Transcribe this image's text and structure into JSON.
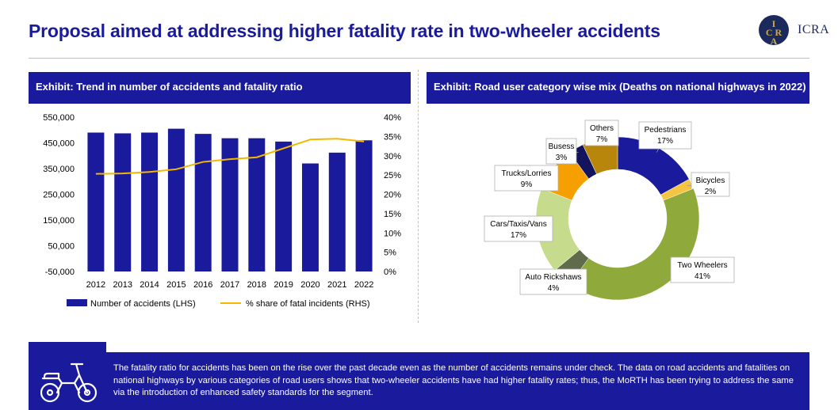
{
  "header": {
    "title": "Proposal aimed at addressing higher fatality rate in two-wheeler accidents",
    "logo_text": "ICRA",
    "logo_letters": "ICRA"
  },
  "left_panel": {
    "heading": "Exhibit: Trend in number of accidents and fatality ratio"
  },
  "right_panel": {
    "heading": "Exhibit: Road user category wise mix (Deaths on national highways in 2022)"
  },
  "footer": {
    "text": "The fatality ratio for accidents has been on the rise over the past decade even as the number of accidents remains under check. The data on road accidents and fatalities on national highways by various categories of road users shows that two-wheeler accidents have had higher fatality rates; thus, the MoRTH has been trying to address the same via the introduction of enhanced safety standards for the segment.",
    "icon": "motorcycle-icon"
  },
  "colors": {
    "brand_blue": "#1a1a9c",
    "line_orange": "#f5b800"
  },
  "chart_data": [
    {
      "type": "bar",
      "categories": [
        "2012",
        "2013",
        "2014",
        "2015",
        "2016",
        "2017",
        "2018",
        "2019",
        "2020",
        "2021",
        "2022"
      ],
      "series": [
        {
          "name": "Number of accidents (LHS)",
          "type": "bar",
          "axis": "left",
          "values": [
            490000,
            487000,
            490000,
            505000,
            485000,
            468000,
            468000,
            455000,
            370000,
            412000,
            460000
          ]
        },
        {
          "name": "% share of fatal incidents (RHS)",
          "type": "line",
          "axis": "right",
          "values": [
            25.3,
            25.4,
            25.8,
            26.5,
            28.4,
            29.1,
            29.6,
            31.9,
            34.2,
            34.4,
            33.7
          ]
        }
      ],
      "y_left": {
        "ticks": [
          "550,000",
          "450,000",
          "350,000",
          "250,000",
          "150,000",
          "50,000",
          "-50,000"
        ],
        "ylim": [
          -50000,
          550000
        ]
      },
      "y_right": {
        "ticks": [
          "40%",
          "35%",
          "30%",
          "25%",
          "20%",
          "15%",
          "10%",
          "5%",
          "0%"
        ],
        "ylim": [
          0,
          40
        ]
      },
      "legend_position": "bottom",
      "grid": false
    },
    {
      "type": "pie",
      "variant": "donut",
      "slices": [
        {
          "label": "Pedestrians",
          "pct_label": "17%",
          "value": 17,
          "color": "#1a1a9c"
        },
        {
          "label": "Bicycles",
          "pct_label": "2%",
          "value": 2,
          "color": "#f5c542"
        },
        {
          "label": "Two Wheelers",
          "pct_label": "41%",
          "value": 41,
          "color": "#8faa3a"
        },
        {
          "label": "Auto Rickshaws",
          "pct_label": "4%",
          "value": 4,
          "color": "#5f6b4a"
        },
        {
          "label": "Cars/Taxis/Vans",
          "pct_label": "17%",
          "value": 17,
          "color": "#c6dc8c"
        },
        {
          "label": "Trucks/Lorries",
          "pct_label": "9%",
          "value": 9,
          "color": "#f5a000"
        },
        {
          "label": "Busess",
          "pct_label": "3%",
          "value": 3,
          "color": "#14145e"
        },
        {
          "label": "Others",
          "pct_label": "7%",
          "value": 7,
          "color": "#b8860b"
        }
      ]
    }
  ]
}
